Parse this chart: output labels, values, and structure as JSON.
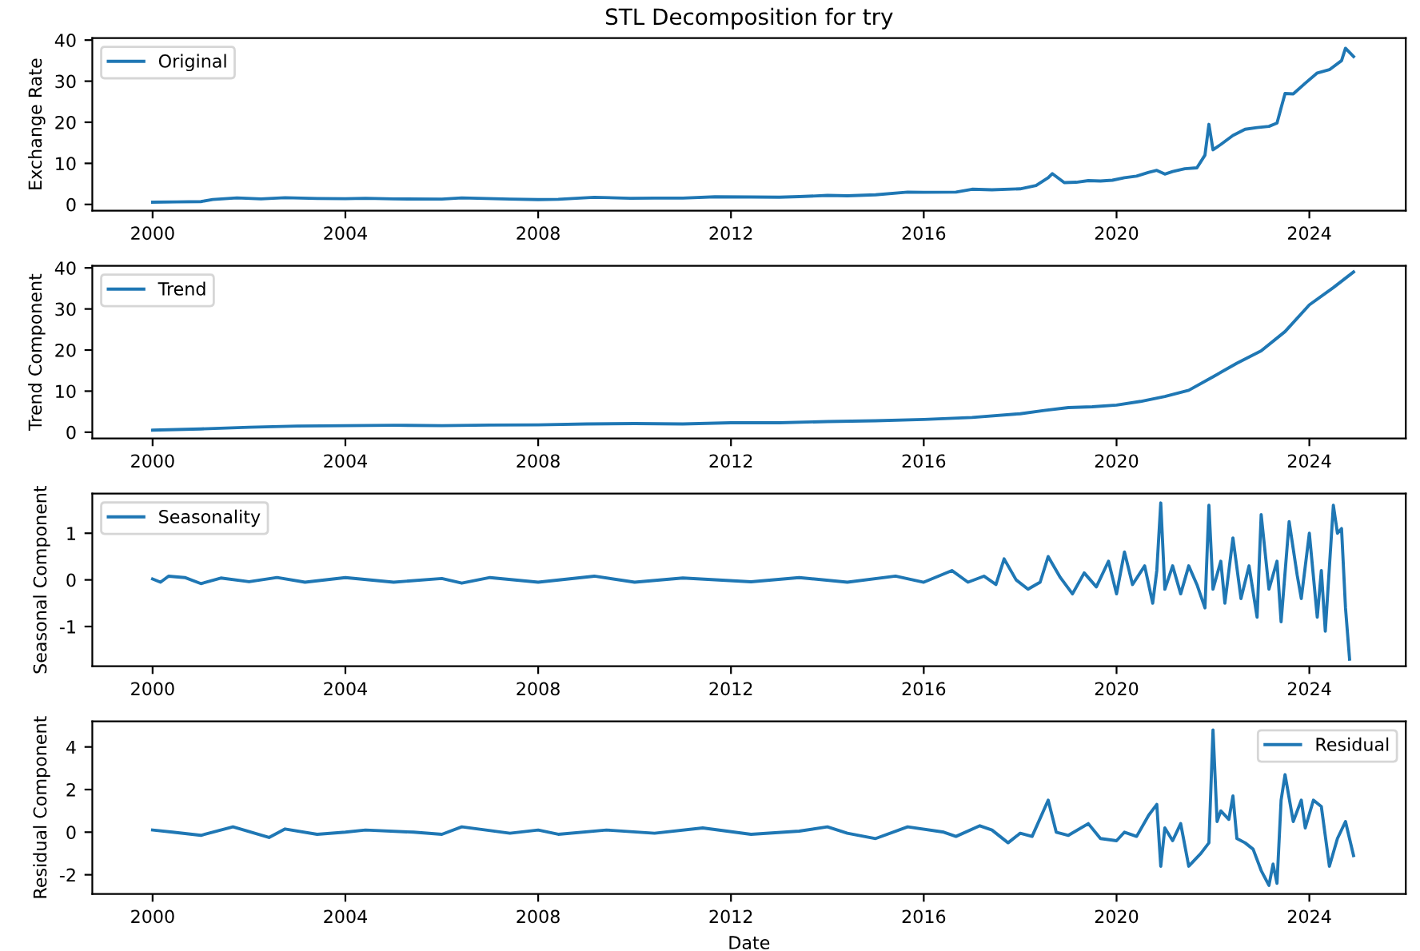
{
  "chart_data": [
    {
      "type": "line",
      "title": "STL Decomposition for try",
      "ylabel": "Exchange Rate",
      "legend": "top left",
      "xlim": [
        "1998-10",
        "2026-01"
      ],
      "xticks": [
        "2000",
        "2004",
        "2008",
        "2012",
        "2016",
        "2020",
        "2024"
      ],
      "ylim": [
        -1.5,
        40.5
      ],
      "yticks": [
        0,
        10,
        20,
        30,
        40
      ],
      "series": [
        {
          "name": "Original",
          "color": "#1f77b4",
          "x": [
            "2000-01",
            "2000-07",
            "2001-01",
            "2001-04",
            "2001-10",
            "2002-04",
            "2002-10",
            "2003-06",
            "2004-01",
            "2004-06",
            "2005-01",
            "2006-01",
            "2006-06",
            "2007-06",
            "2008-01",
            "2008-06",
            "2009-03",
            "2009-12",
            "2010-06",
            "2011-01",
            "2011-09",
            "2012-06",
            "2013-01",
            "2013-06",
            "2014-01",
            "2014-06",
            "2015-01",
            "2015-09",
            "2016-01",
            "2016-09",
            "2017-01",
            "2017-06",
            "2018-01",
            "2018-05",
            "2018-08",
            "2018-09",
            "2018-12",
            "2019-03",
            "2019-06",
            "2019-09",
            "2019-12",
            "2020-03",
            "2020-06",
            "2020-09",
            "2020-11",
            "2021-01",
            "2021-03",
            "2021-06",
            "2021-09",
            "2021-11",
            "2021-12",
            "2022-01",
            "2022-03",
            "2022-06",
            "2022-09",
            "2022-12",
            "2023-03",
            "2023-05",
            "2023-06",
            "2023-07",
            "2023-09",
            "2023-12",
            "2024-03",
            "2024-06",
            "2024-09",
            "2024-10",
            "2024-12"
          ],
          "values": [
            0.55,
            0.62,
            0.7,
            1.2,
            1.6,
            1.35,
            1.65,
            1.45,
            1.4,
            1.5,
            1.35,
            1.3,
            1.6,
            1.3,
            1.17,
            1.25,
            1.75,
            1.5,
            1.55,
            1.55,
            1.85,
            1.8,
            1.77,
            1.9,
            2.2,
            2.1,
            2.35,
            3.0,
            2.95,
            3.0,
            3.7,
            3.55,
            3.8,
            4.6,
            6.5,
            7.5,
            5.3,
            5.4,
            5.8,
            5.7,
            5.9,
            6.5,
            6.9,
            7.8,
            8.3,
            7.4,
            8.0,
            8.7,
            8.9,
            12,
            19.5,
            13.3,
            14.6,
            16.8,
            18.3,
            18.7,
            19.0,
            19.8,
            23.5,
            27,
            26.9,
            29.5,
            32,
            32.8,
            35,
            38,
            36
          ]
        }
      ]
    },
    {
      "type": "line",
      "ylabel": "Trend Component",
      "legend": "top left",
      "xlim": [
        "1998-10",
        "2026-01"
      ],
      "xticks": [
        "2000",
        "2004",
        "2008",
        "2012",
        "2016",
        "2020",
        "2024"
      ],
      "ylim": [
        -1.5,
        40.5
      ],
      "yticks": [
        0,
        10,
        20,
        30,
        40
      ],
      "series": [
        {
          "name": "Trend",
          "color": "#1f77b4",
          "x": [
            "2000-01",
            "2001-01",
            "2002-01",
            "2003-01",
            "2004-01",
            "2005-01",
            "2006-01",
            "2007-01",
            "2008-01",
            "2009-01",
            "2010-01",
            "2011-01",
            "2012-01",
            "2013-01",
            "2014-01",
            "2015-01",
            "2016-01",
            "2017-01",
            "2018-01",
            "2018-07",
            "2019-01",
            "2019-07",
            "2020-01",
            "2020-07",
            "2021-01",
            "2021-07",
            "2022-01",
            "2022-07",
            "2023-01",
            "2023-07",
            "2024-01",
            "2024-07",
            "2024-12"
          ],
          "values": [
            0.5,
            0.8,
            1.2,
            1.5,
            1.6,
            1.7,
            1.6,
            1.75,
            1.8,
            2.0,
            2.1,
            2.0,
            2.3,
            2.3,
            2.6,
            2.8,
            3.1,
            3.6,
            4.5,
            5.3,
            6.0,
            6.2,
            6.6,
            7.5,
            8.7,
            10.2,
            13.5,
            16.8,
            19.8,
            24.5,
            31,
            35.2,
            39
          ]
        }
      ]
    },
    {
      "type": "line",
      "ylabel": "Seasonal Component",
      "legend": "top left",
      "xlim": [
        "1998-10",
        "2026-01"
      ],
      "xticks": [
        "2000",
        "2004",
        "2008",
        "2012",
        "2016",
        "2020",
        "2024"
      ],
      "ylim": [
        -1.85,
        1.85
      ],
      "yticks": [
        -1,
        0,
        1
      ],
      "series": [
        {
          "name": "Seasonality",
          "color": "#1f77b4",
          "x": [
            "2000-01",
            "2000-03",
            "2000-05",
            "2000-09",
            "2001-01",
            "2001-06",
            "2002-01",
            "2002-08",
            "2003-03",
            "2004-01",
            "2005-01",
            "2006-01",
            "2006-06",
            "2007-01",
            "2008-01",
            "2009-03",
            "2010-01",
            "2011-01",
            "2012-06",
            "2013-06",
            "2014-06",
            "2015-06",
            "2016-01",
            "2016-08",
            "2016-12",
            "2017-04",
            "2017-07",
            "2017-09",
            "2017-12",
            "2018-03",
            "2018-06",
            "2018-08",
            "2018-11",
            "2019-02",
            "2019-05",
            "2019-08",
            "2019-11",
            "2020-01",
            "2020-03",
            "2020-05",
            "2020-08",
            "2020-10",
            "2020-11",
            "2020-12",
            "2021-01",
            "2021-03",
            "2021-05",
            "2021-07",
            "2021-09",
            "2021-11",
            "2021-12",
            "2022-01",
            "2022-03",
            "2022-04",
            "2022-06",
            "2022-08",
            "2022-10",
            "2022-12",
            "2023-01",
            "2023-03",
            "2023-05",
            "2023-06",
            "2023-08",
            "2023-10",
            "2023-11",
            "2024-01",
            "2024-03",
            "2024-04",
            "2024-05",
            "2024-07",
            "2024-08",
            "2024-09",
            "2024-10",
            "2024-11"
          ],
          "values": [
            0.02,
            -0.05,
            0.08,
            0.05,
            -0.08,
            0.04,
            -0.04,
            0.05,
            -0.05,
            0.05,
            -0.05,
            0.03,
            -0.07,
            0.05,
            -0.05,
            0.08,
            -0.05,
            0.04,
            -0.04,
            0.05,
            -0.05,
            0.08,
            -0.05,
            0.2,
            -0.05,
            0.08,
            -0.1,
            0.45,
            0.0,
            -0.2,
            -0.05,
            0.5,
            0.05,
            -0.3,
            0.15,
            -0.15,
            0.4,
            -0.3,
            0.6,
            -0.1,
            0.3,
            -0.5,
            0.2,
            1.65,
            -0.2,
            0.3,
            -0.3,
            0.3,
            -0.1,
            -0.6,
            1.6,
            -0.2,
            0.4,
            -0.5,
            0.9,
            -0.4,
            0.3,
            -0.8,
            1.4,
            -0.2,
            0.4,
            -0.9,
            1.25,
            0.1,
            -0.4,
            1.0,
            -0.8,
            0.2,
            -1.1,
            1.6,
            1.0,
            1.1,
            -0.6,
            -1.7
          ]
        }
      ]
    },
    {
      "type": "line",
      "ylabel": "Residual Component",
      "xlabel": "Date",
      "legend": "top right",
      "xlim": [
        "1998-10",
        "2026-01"
      ],
      "xticks": [
        "2000",
        "2004",
        "2008",
        "2012",
        "2016",
        "2020",
        "2024"
      ],
      "ylim": [
        -2.9,
        5.2
      ],
      "yticks": [
        -2,
        0,
        2,
        4
      ],
      "series": [
        {
          "name": "Residual",
          "color": "#1f77b4",
          "x": [
            "2000-01",
            "2000-06",
            "2001-01",
            "2001-09",
            "2002-06",
            "2002-10",
            "2003-06",
            "2004-01",
            "2004-06",
            "2005-06",
            "2006-01",
            "2006-06",
            "2007-06",
            "2008-01",
            "2008-06",
            "2009-06",
            "2010-06",
            "2011-06",
            "2012-06",
            "2013-06",
            "2014-01",
            "2014-06",
            "2015-01",
            "2015-09",
            "2016-06",
            "2016-09",
            "2017-03",
            "2017-06",
            "2017-10",
            "2018-01",
            "2018-04",
            "2018-08",
            "2018-10",
            "2019-01",
            "2019-06",
            "2019-09",
            "2020-01",
            "2020-03",
            "2020-06",
            "2020-09",
            "2020-11",
            "2020-12",
            "2021-01",
            "2021-03",
            "2021-05",
            "2021-07",
            "2021-10",
            "2021-12",
            "2022-01",
            "2022-02",
            "2022-03",
            "2022-05",
            "2022-06",
            "2022-07",
            "2022-09",
            "2022-11",
            "2023-01",
            "2023-03",
            "2023-04",
            "2023-05",
            "2023-06",
            "2023-07",
            "2023-09",
            "2023-11",
            "2023-12",
            "2024-02",
            "2024-04",
            "2024-06",
            "2024-08",
            "2024-10",
            "2024-12"
          ],
          "values": [
            0.1,
            0.0,
            -0.15,
            0.25,
            -0.25,
            0.15,
            -0.1,
            0.0,
            0.1,
            0.0,
            -0.1,
            0.25,
            -0.05,
            0.1,
            -0.1,
            0.1,
            -0.05,
            0.2,
            -0.1,
            0.05,
            0.25,
            -0.05,
            -0.3,
            0.25,
            0.0,
            -0.2,
            0.3,
            0.1,
            -0.5,
            -0.05,
            -0.2,
            1.5,
            0.0,
            -0.15,
            0.4,
            -0.3,
            -0.4,
            0.0,
            -0.2,
            0.8,
            1.3,
            -1.6,
            0.2,
            -0.4,
            0.4,
            -1.6,
            -1.0,
            -0.5,
            4.8,
            0.5,
            1.0,
            0.6,
            1.7,
            -0.3,
            -0.5,
            -0.8,
            -1.8,
            -2.5,
            -1.5,
            -2.4,
            1.5,
            2.7,
            0.5,
            1.5,
            0.2,
            1.5,
            1.2,
            -1.6,
            -0.3,
            0.5,
            -1.1
          ]
        }
      ]
    }
  ]
}
